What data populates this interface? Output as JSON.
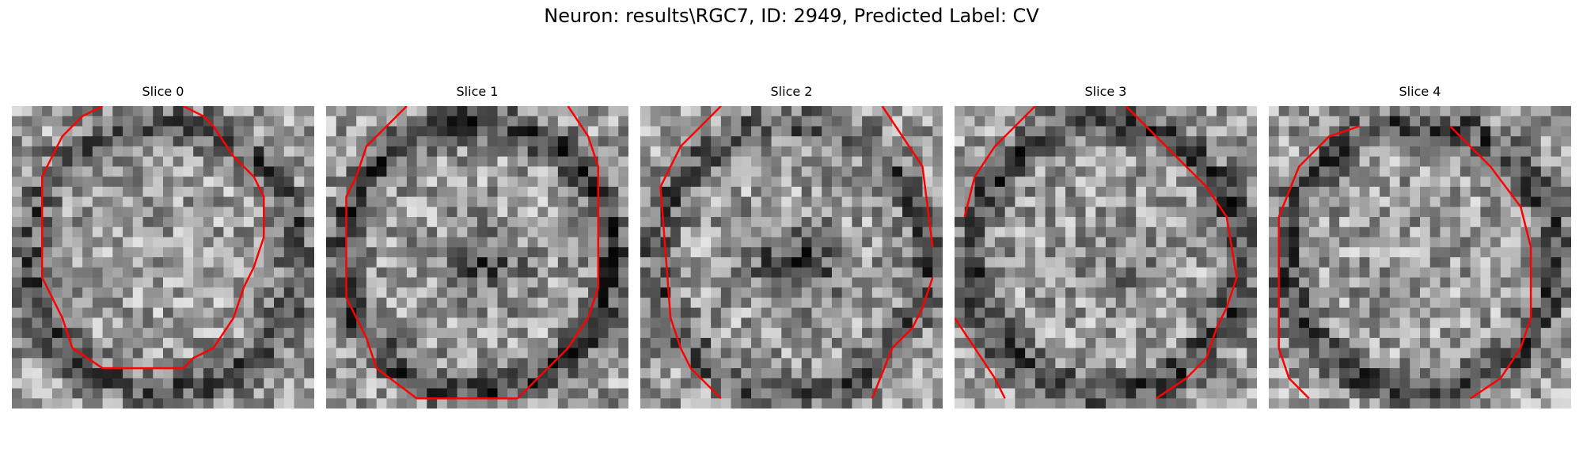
{
  "figure": {
    "title": "Neuron: results\\RGC7, ID: 2949, Predicted Label: CV",
    "contour_color": "#ff0000"
  },
  "panels": [
    {
      "title": "Slice 0",
      "seed": 11,
      "dark_center": 0.0,
      "ring_dark": 0.55
    },
    {
      "title": "Slice 1",
      "seed": 23,
      "dark_center": 0.55,
      "ring_dark": 0.7
    },
    {
      "title": "Slice 2",
      "seed": 37,
      "dark_center": 0.75,
      "ring_dark": 0.55
    },
    {
      "title": "Slice 3",
      "seed": 41,
      "dark_center": 0.25,
      "ring_dark": 0.65
    },
    {
      "title": "Slice 4",
      "seed": 53,
      "dark_center": 0.0,
      "ring_dark": 0.6
    }
  ]
}
